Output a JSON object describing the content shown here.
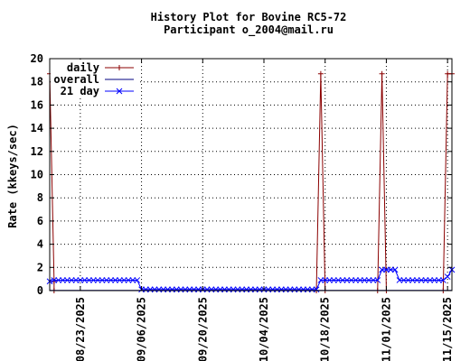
{
  "chart_data": {
    "type": "line",
    "title": "History Plot for Bovine RC5-72",
    "subtitle": "Participant o_2004@mail.ru",
    "xlabel": "",
    "ylabel": "Rate (kkeys/sec)",
    "xlim": [
      "2025-08-16",
      "2025-11-16"
    ],
    "ylim": [
      0,
      20
    ],
    "yticks": [
      0,
      2,
      4,
      6,
      8,
      10,
      12,
      14,
      16,
      18,
      20
    ],
    "xticks": [
      "08/23/2025",
      "09/06/2025",
      "09/20/2025",
      "10/04/2025",
      "10/18/2025",
      "11/01/2025",
      "11/15/2025"
    ],
    "grid": true,
    "legend_position": "top-left",
    "series": [
      {
        "name": "daily",
        "color": "#8b0000",
        "marker": "plus",
        "points": [
          [
            "2025-08-16",
            18.7
          ],
          [
            "2025-08-17",
            0.8
          ],
          [
            "2025-08-17",
            0.0
          ],
          [
            "2025-10-16",
            0.0
          ],
          [
            "2025-10-17",
            18.7
          ],
          [
            "2025-10-18",
            0.0
          ],
          [
            "2025-10-30",
            0.0
          ],
          [
            "2025-10-31",
            18.7
          ],
          [
            "2025-11-01",
            0.0
          ],
          [
            "2025-11-14",
            0.0
          ],
          [
            "2025-11-15",
            18.7
          ],
          [
            "2025-11-16",
            18.7
          ]
        ]
      },
      {
        "name": "overall",
        "color": "#000080",
        "marker": "none",
        "points": [
          [
            "2025-08-16",
            0.02
          ],
          [
            "2025-11-16",
            0.02
          ]
        ]
      },
      {
        "name": "21 day",
        "color": "#0000ff",
        "marker": "x",
        "points": [
          [
            "2025-08-16",
            0.8
          ],
          [
            "2025-08-17",
            0.9
          ],
          [
            "2025-08-18",
            0.9
          ],
          [
            "2025-08-19",
            0.9
          ],
          [
            "2025-08-20",
            0.9
          ],
          [
            "2025-08-21",
            0.9
          ],
          [
            "2025-08-22",
            0.9
          ],
          [
            "2025-08-23",
            0.9
          ],
          [
            "2025-08-24",
            0.9
          ],
          [
            "2025-08-25",
            0.9
          ],
          [
            "2025-08-26",
            0.9
          ],
          [
            "2025-08-27",
            0.9
          ],
          [
            "2025-08-28",
            0.9
          ],
          [
            "2025-08-29",
            0.9
          ],
          [
            "2025-08-30",
            0.9
          ],
          [
            "2025-08-31",
            0.9
          ],
          [
            "2025-09-01",
            0.9
          ],
          [
            "2025-09-02",
            0.9
          ],
          [
            "2025-09-03",
            0.9
          ],
          [
            "2025-09-04",
            0.9
          ],
          [
            "2025-09-05",
            0.9
          ],
          [
            "2025-09-06",
            0.1
          ],
          [
            "2025-09-07",
            0.1
          ],
          [
            "2025-09-08",
            0.1
          ],
          [
            "2025-09-09",
            0.1
          ],
          [
            "2025-09-10",
            0.1
          ],
          [
            "2025-09-11",
            0.1
          ],
          [
            "2025-09-12",
            0.1
          ],
          [
            "2025-09-13",
            0.1
          ],
          [
            "2025-09-14",
            0.1
          ],
          [
            "2025-09-15",
            0.1
          ],
          [
            "2025-09-16",
            0.1
          ],
          [
            "2025-09-17",
            0.1
          ],
          [
            "2025-09-18",
            0.1
          ],
          [
            "2025-09-19",
            0.1
          ],
          [
            "2025-09-20",
            0.1
          ],
          [
            "2025-09-21",
            0.1
          ],
          [
            "2025-09-22",
            0.1
          ],
          [
            "2025-09-23",
            0.1
          ],
          [
            "2025-09-24",
            0.1
          ],
          [
            "2025-09-25",
            0.1
          ],
          [
            "2025-09-26",
            0.1
          ],
          [
            "2025-09-27",
            0.1
          ],
          [
            "2025-09-28",
            0.1
          ],
          [
            "2025-09-29",
            0.1
          ],
          [
            "2025-09-30",
            0.1
          ],
          [
            "2025-10-01",
            0.1
          ],
          [
            "2025-10-02",
            0.1
          ],
          [
            "2025-10-03",
            0.1
          ],
          [
            "2025-10-04",
            0.1
          ],
          [
            "2025-10-05",
            0.1
          ],
          [
            "2025-10-06",
            0.1
          ],
          [
            "2025-10-07",
            0.1
          ],
          [
            "2025-10-08",
            0.1
          ],
          [
            "2025-10-09",
            0.1
          ],
          [
            "2025-10-10",
            0.1
          ],
          [
            "2025-10-11",
            0.1
          ],
          [
            "2025-10-12",
            0.1
          ],
          [
            "2025-10-13",
            0.1
          ],
          [
            "2025-10-14",
            0.1
          ],
          [
            "2025-10-15",
            0.1
          ],
          [
            "2025-10-16",
            0.1
          ],
          [
            "2025-10-17",
            0.9
          ],
          [
            "2025-10-18",
            0.9
          ],
          [
            "2025-10-19",
            0.9
          ],
          [
            "2025-10-20",
            0.9
          ],
          [
            "2025-10-21",
            0.9
          ],
          [
            "2025-10-22",
            0.9
          ],
          [
            "2025-10-23",
            0.9
          ],
          [
            "2025-10-24",
            0.9
          ],
          [
            "2025-10-25",
            0.9
          ],
          [
            "2025-10-26",
            0.9
          ],
          [
            "2025-10-27",
            0.9
          ],
          [
            "2025-10-28",
            0.9
          ],
          [
            "2025-10-29",
            0.9
          ],
          [
            "2025-10-30",
            0.9
          ],
          [
            "2025-10-31",
            1.8
          ],
          [
            "2025-11-01",
            1.8
          ],
          [
            "2025-11-02",
            1.8
          ],
          [
            "2025-11-03",
            1.8
          ],
          [
            "2025-11-04",
            0.9
          ],
          [
            "2025-11-05",
            0.9
          ],
          [
            "2025-11-06",
            0.9
          ],
          [
            "2025-11-07",
            0.9
          ],
          [
            "2025-11-08",
            0.9
          ],
          [
            "2025-11-09",
            0.9
          ],
          [
            "2025-11-10",
            0.9
          ],
          [
            "2025-11-11",
            0.9
          ],
          [
            "2025-11-12",
            0.9
          ],
          [
            "2025-11-13",
            0.9
          ],
          [
            "2025-11-14",
            0.9
          ],
          [
            "2025-11-15",
            1.2
          ],
          [
            "2025-11-16",
            1.8
          ]
        ]
      }
    ]
  }
}
